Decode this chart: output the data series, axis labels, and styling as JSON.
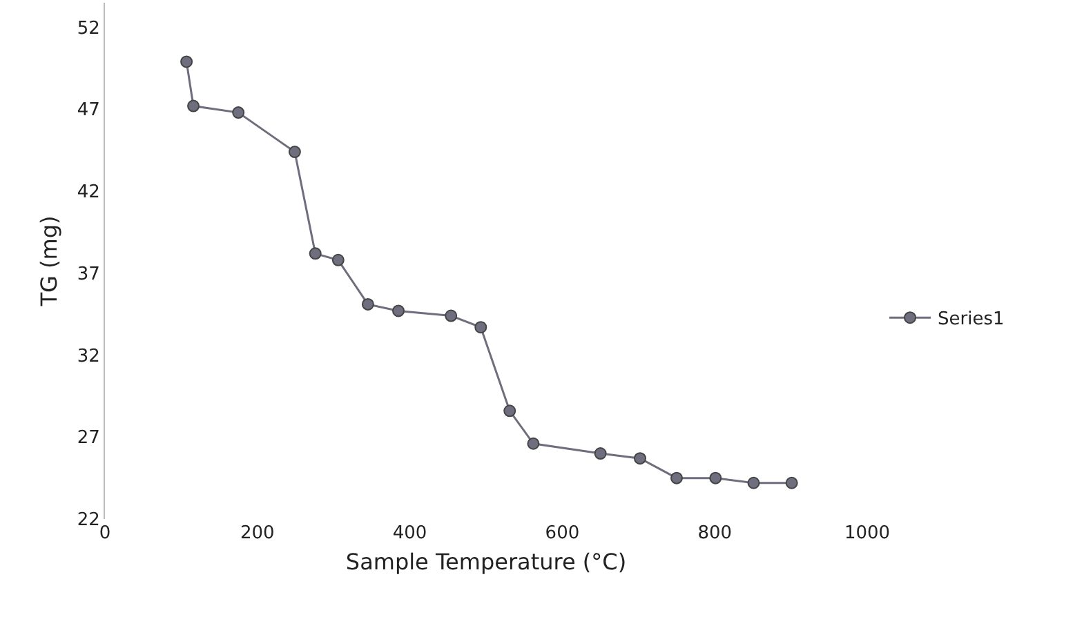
{
  "chart_data": {
    "type": "line",
    "xlabel": "Sample Temperature (°C)",
    "ylabel": "TG (mg)",
    "x": [
      107,
      116,
      175,
      249,
      276,
      306,
      345,
      385,
      454,
      493,
      531,
      562,
      650,
      702,
      750,
      801,
      851,
      901
    ],
    "series": [
      {
        "name": "Series1",
        "color": "#6e6e7e",
        "values": [
          49.9,
          47.2,
          46.8,
          44.4,
          38.2,
          37.8,
          35.1,
          34.7,
          34.4,
          33.7,
          28.6,
          26.6,
          26.0,
          25.7,
          24.5,
          24.5,
          24.2,
          24.2
        ]
      }
    ],
    "xlim": [
      0,
      1000
    ],
    "xticks": [
      0,
      200,
      400,
      600,
      800,
      1000
    ],
    "ylim": [
      22,
      53.5
    ],
    "yticks": [
      22,
      27,
      32,
      37,
      42,
      47,
      52
    ],
    "legend": "right",
    "marker": "circle",
    "line_style": "solid"
  }
}
